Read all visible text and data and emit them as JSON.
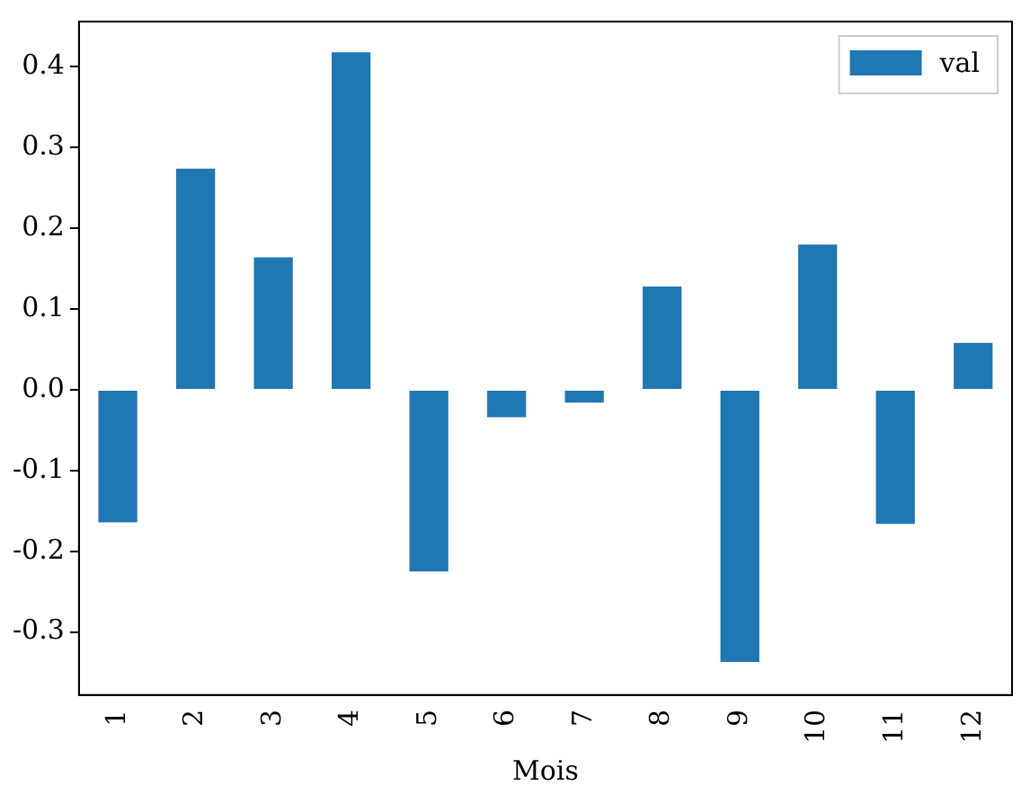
{
  "chart_data": {
    "type": "bar",
    "xlabel": "Mois",
    "categories": [
      "1",
      "2",
      "3",
      "4",
      "5",
      "6",
      "7",
      "8",
      "9",
      "10",
      "11",
      "12"
    ],
    "series": [
      {
        "name": "val",
        "color": "#1f77b4",
        "values": [
          -0.164,
          0.274,
          0.164,
          0.418,
          -0.225,
          -0.034,
          -0.016,
          0.128,
          -0.337,
          0.18,
          -0.166,
          0.058
        ]
      }
    ],
    "ylim": [
      -0.378,
      0.456
    ],
    "yticks": [
      -0.3,
      -0.2,
      -0.1,
      {
        "value": 0,
        "label": "0.0"
      },
      0.1,
      0.2,
      0.3,
      0.4
    ],
    "legend": "top right",
    "grid": false
  }
}
